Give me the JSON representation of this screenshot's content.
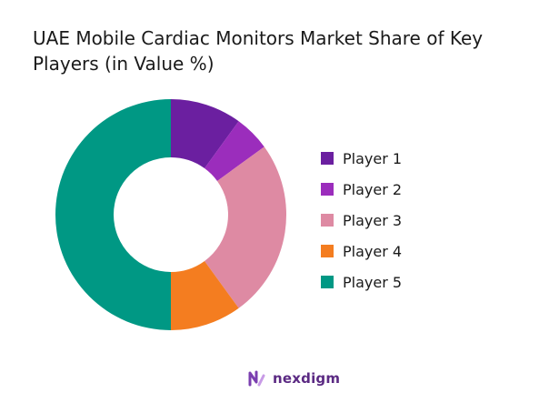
{
  "chart_data": {
    "type": "pie",
    "title": "UAE Mobile Cardiac Monitors Market Share of Key Players (in Value %)",
    "categories": [
      "Player 1",
      "Player 2",
      "Player 3",
      "Player 4",
      "Player 5"
    ],
    "values": [
      10,
      5,
      25,
      10,
      50
    ],
    "colors": [
      "#6b1fa0",
      "#9b2dbc",
      "#de8aa3",
      "#f47d20",
      "#009884"
    ],
    "donut": true,
    "legend_position": "right"
  },
  "brand": {
    "name": "nexdigm"
  }
}
